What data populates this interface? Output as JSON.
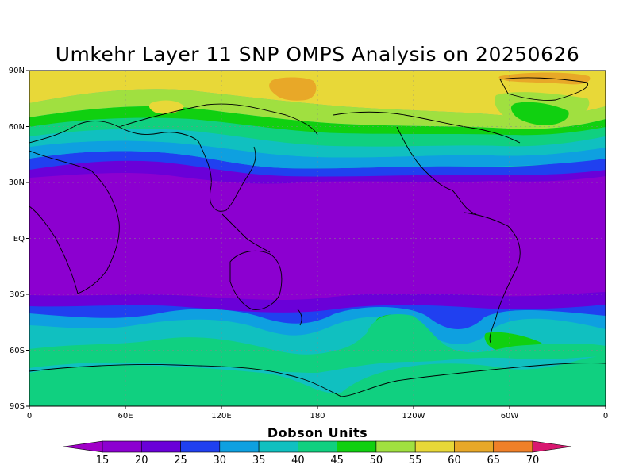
{
  "title": "Umkehr Layer 11 SNP OMPS Analysis on 20250626",
  "colorbar": {
    "title": "Dobson Units",
    "labels": [
      "15",
      "20",
      "25",
      "30",
      "35",
      "40",
      "45",
      "50",
      "55",
      "60",
      "65",
      "70"
    ],
    "colors": [
      "#8c00d0",
      "#6a00d8",
      "#2040f0",
      "#0ea0e0",
      "#10c0c0",
      "#10d080",
      "#10d010",
      "#a0e040",
      "#e8d838",
      "#e8a828",
      "#f08028",
      "#f01010",
      "#d81870"
    ],
    "low_end_color": "#a000c8",
    "high_end_color": "#d81870"
  },
  "axes": {
    "lat_labels": [
      "90N",
      "60N",
      "30N",
      "EQ",
      "30S",
      "60S",
      "90S"
    ],
    "lon_labels": [
      "0",
      "60E",
      "120E",
      "180",
      "120W",
      "60W",
      "0"
    ]
  },
  "map_data": {
    "projection": "cylindrical-equidistant",
    "lon_range": [
      0,
      360
    ],
    "lat_range": [
      -90,
      90
    ],
    "grid_lines": true,
    "coastlines": true
  }
}
